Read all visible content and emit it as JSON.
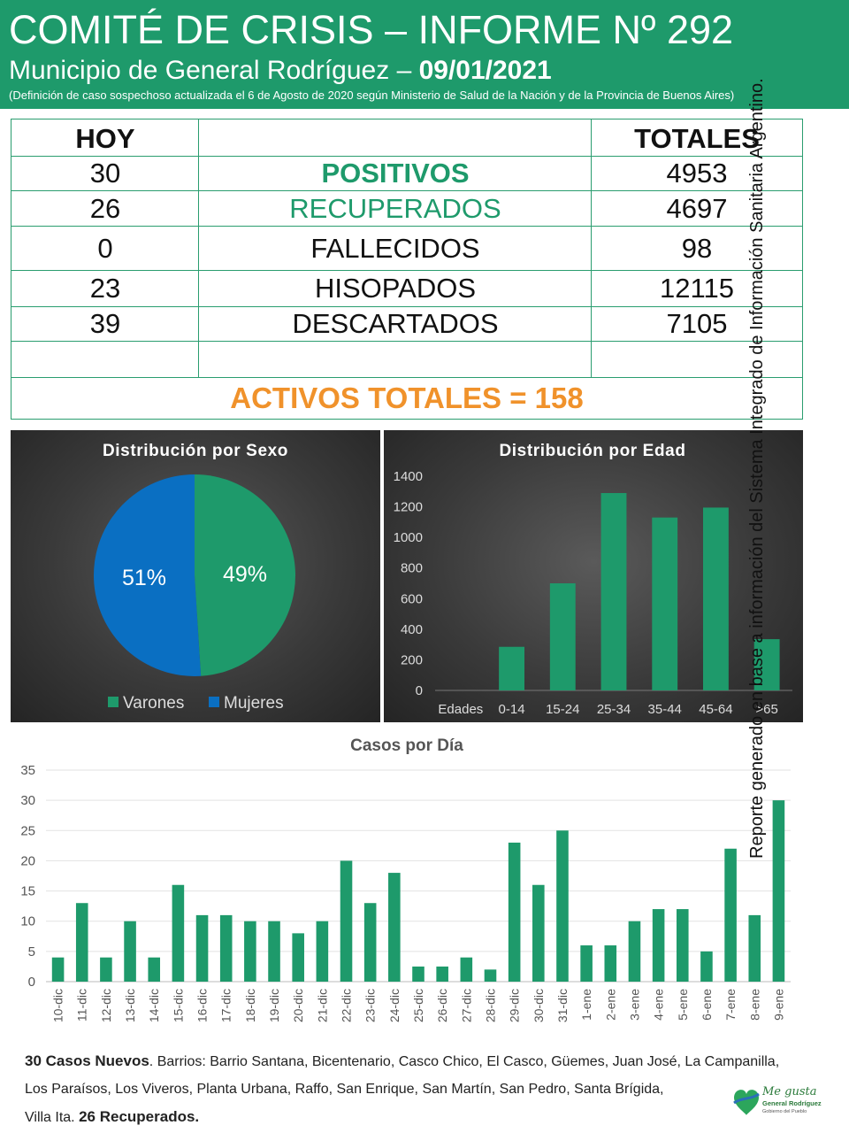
{
  "header": {
    "title": "COMITÉ DE CRISIS – INFORME Nº 292",
    "subtitle": "Municipio de General Rodríguez – ",
    "date": "09/01/2021",
    "note": "(Definición de caso sospechoso actualizada el 6 de Agosto de 2020 según Ministerio de Salud de la Nación y de la Provincia de Buenos Aires)"
  },
  "stats": {
    "hoy_label": "HOY",
    "totales_label": "TOTALES",
    "rows": [
      {
        "hoy": "30",
        "label": "POSITIVOS",
        "total": "4953"
      },
      {
        "hoy": "26",
        "label": "RECUPERADOS",
        "total": "4697"
      },
      {
        "hoy": "0",
        "label": "FALLECIDOS",
        "total": "98"
      },
      {
        "hoy": "23",
        "label": "HISOPADOS",
        "total": "12115"
      },
      {
        "hoy": "39",
        "label": "DESCARTADOS",
        "total": "7105"
      }
    ],
    "activos": "ACTIVOS TOTALES = 158"
  },
  "side_text": "Reporte generado en base a información del Sistema Integrado de Información Sanitaria Argentino.",
  "chart_data": [
    {
      "type": "pie",
      "title": "Distribución por Sexo",
      "categories": [
        "Varones",
        "Mujeres"
      ],
      "values": [
        49,
        51
      ],
      "labels": [
        "49%",
        "51%"
      ],
      "colors": [
        "#1e9a6b",
        "#0a6fc2"
      ],
      "legend": "bottom"
    },
    {
      "type": "bar",
      "title": "Distribución por Edad",
      "categories": [
        "Edades",
        "0-14",
        "15-24",
        "25-34",
        "35-44",
        "45-64",
        ">65"
      ],
      "values": [
        0,
        285,
        700,
        1290,
        1130,
        1195,
        335
      ],
      "ylim": [
        0,
        1400
      ],
      "yticks": [
        "0",
        "200",
        "400",
        "600",
        "800",
        "1000",
        "1200",
        "1400"
      ],
      "color": "#1e9a6b"
    },
    {
      "type": "bar",
      "title": "Casos por Día",
      "categories": [
        "10-dic",
        "11-dic",
        "12-dic",
        "13-dic",
        "14-dic",
        "15-dic",
        "16-dic",
        "17-dic",
        "18-dic",
        "19-dic",
        "20-dic",
        "21-dic",
        "22-dic",
        "23-dic",
        "24-dic",
        "25-dic",
        "26-dic",
        "27-dic",
        "28-dic",
        "29-dic",
        "30-dic",
        "31-dic",
        "1-ene",
        "2-ene",
        "3-ene",
        "4-ene",
        "5-ene",
        "6-ene",
        "7-ene",
        "8-ene",
        "9-ene"
      ],
      "values": [
        4,
        13,
        4,
        10,
        4,
        16,
        11,
        11,
        10,
        10,
        8,
        10,
        20,
        13,
        18,
        2.5,
        2.5,
        4,
        2,
        23,
        16,
        25,
        6,
        6,
        10,
        12,
        12,
        5,
        22,
        11,
        30
      ],
      "ylim": [
        0,
        35
      ],
      "yticks": [
        "0",
        "5",
        "10",
        "15",
        "20",
        "25",
        "30",
        "35"
      ],
      "grid": true,
      "color": "#1e9a6b"
    }
  ],
  "footer": {
    "new_cases": "30 Casos Nuevos",
    "barrios_1": ". Barrios: Barrio Santana, Bicentenario, Casco Chico, El Casco, Güemes, Juan José, La Campanilla,",
    "barrios_2": "Los Paraísos, Los Viveros, Planta Urbana, Raffo, San Enrique, San Martín, San Pedro, Santa Brígida,",
    "barrios_3": "Villa Ita. ",
    "recovered": "26 Recuperados."
  },
  "logo": {
    "line1": "Me gusta",
    "line2": "General Rodríguez",
    "line3": "Gobierno del Pueblo"
  }
}
